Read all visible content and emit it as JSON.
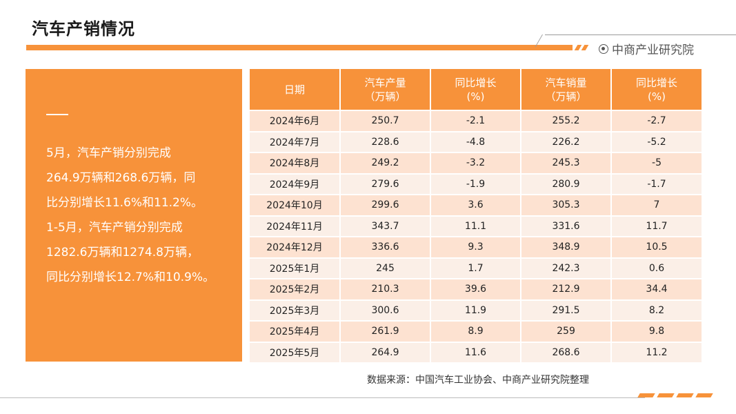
{
  "page": {
    "title": "汽车产销情况",
    "brand": "中商产业研究院"
  },
  "summary": {
    "lines": [
      "5月，汽车产销分别完成",
      "264.9万辆和268.6万辆，同",
      "比分别增长11.6%和11.2%。",
      "1-5月，汽车产销分别完成",
      "1282.6万辆和1274.8万辆，",
      "同比分别增长12.7%和10.9%。"
    ]
  },
  "table": {
    "headers": [
      [
        "日期"
      ],
      [
        "汽车产量",
        "（万辆）"
      ],
      [
        "同比增长",
        "(%)"
      ],
      [
        "汽车销量",
        "（万辆）"
      ],
      [
        "同比增长",
        "(%)"
      ]
    ],
    "rows": [
      [
        "2024年6月",
        "250.7",
        "-2.1",
        "255.2",
        "-2.7"
      ],
      [
        "2024年7月",
        "228.6",
        "-4.8",
        "226.2",
        "-5.2"
      ],
      [
        "2024年8月",
        "249.2",
        "-3.2",
        "245.3",
        "-5"
      ],
      [
        "2024年9月",
        "279.6",
        "-1.9",
        "280.9",
        "-1.7"
      ],
      [
        "2024年10月",
        "299.6",
        "3.6",
        "305.3",
        "7"
      ],
      [
        "2024年11月",
        "343.7",
        "11.1",
        "331.6",
        "11.7"
      ],
      [
        "2024年12月",
        "336.6",
        "9.3",
        "348.9",
        "10.5"
      ],
      [
        "2025年1月",
        "245",
        "1.7",
        "242.3",
        "0.6"
      ],
      [
        "2025年2月",
        "210.3",
        "39.6",
        "212.9",
        "34.4"
      ],
      [
        "2025年3月",
        "300.6",
        "11.9",
        "291.5",
        "8.2"
      ],
      [
        "2025年4月",
        "261.9",
        "8.9",
        "259",
        "9.8"
      ],
      [
        "2025年5月",
        "264.9",
        "11.6",
        "268.6",
        "11.2"
      ]
    ]
  },
  "source": "数据来源：中国汽车工业协会、中商产业研究院整理",
  "colors": {
    "accent": "#f7923a",
    "row_odd": "#fde2d1",
    "row_even": "#fbefe7"
  },
  "icons": {
    "brand": "target-circle-icon"
  }
}
